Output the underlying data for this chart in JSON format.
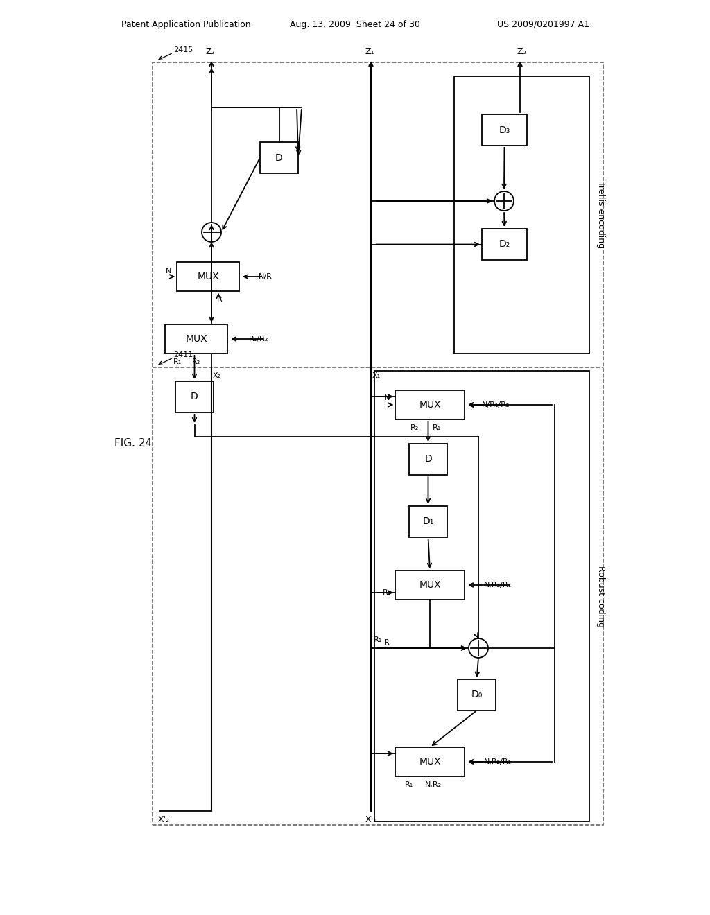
{
  "header_left": "Patent Application Publication",
  "header_mid": "Aug. 13, 2009  Sheet 24 of 30",
  "header_right": "US 2009/0201997 A1",
  "fig_label": "FIG. 24",
  "bg_color": "#ffffff",
  "lc": "#000000",
  "dc": "#555555",
  "lw": 1.3,
  "dlw": 1.1,
  "OL": 220,
  "OR": 870,
  "OB": 130,
  "OT": 1230,
  "HD": 790,
  "VD": 535,
  "TE_L": 655,
  "TE_R": 850,
  "TE_B": 810,
  "TE_T": 1210,
  "RC_L": 540,
  "RC_R": 850,
  "RC_B": 135,
  "RC_T": 785
}
